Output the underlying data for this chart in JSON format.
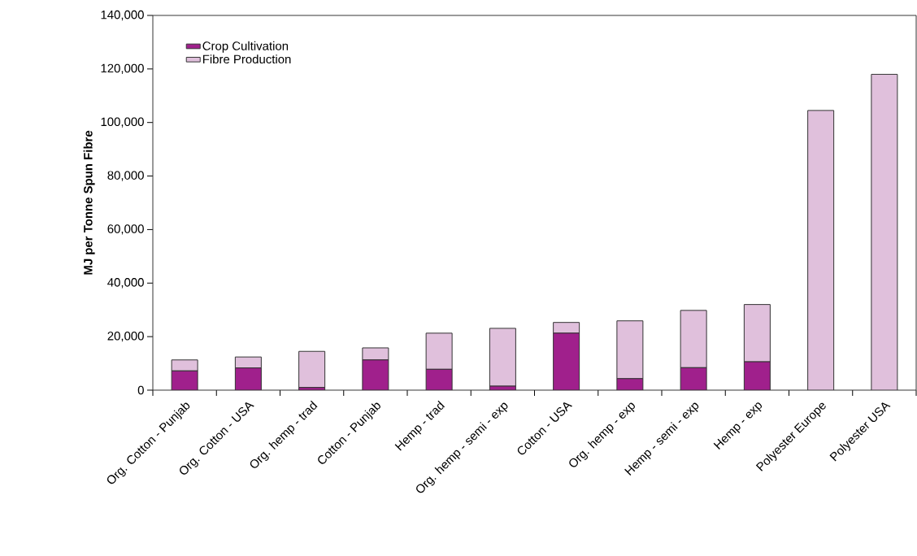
{
  "chart_data": {
    "type": "bar",
    "stacked": true,
    "ylabel": "MJ per Tonne Spun Fibre",
    "categories": [
      "Org. Cotton - Punjab",
      "Org. Cotton - USA",
      "Org. hemp - trad",
      "Cotton - Punjab",
      "Hemp - trad",
      "Org. hemp - semi - exp",
      "Cotton - USA",
      "Org. hemp - exp",
      "Hemp - semi - exp",
      "Hemp - exp",
      "Polyester Europe",
      "Polyester USA"
    ],
    "series": [
      {
        "name": "Crop Cultivation",
        "color": "#a0208c",
        "values": [
          7200,
          8300,
          1000,
          11300,
          7800,
          1500,
          21300,
          4300,
          8400,
          10600,
          0,
          0
        ]
      },
      {
        "name": "Fibre Production",
        "color": "#e0c0dc",
        "values": [
          4100,
          4100,
          13500,
          4500,
          13500,
          21600,
          4000,
          21600,
          21400,
          21400,
          104500,
          118000
        ]
      }
    ],
    "ylim": [
      0,
      140000
    ],
    "yticks": [
      {
        "value": 0,
        "label": "0"
      },
      {
        "value": 20000,
        "label": "20,000"
      },
      {
        "value": 40000,
        "label": "40,000"
      },
      {
        "value": 60000,
        "label": "60,000"
      },
      {
        "value": 80000,
        "label": "80,000"
      },
      {
        "value": 100000,
        "label": "100,000"
      },
      {
        "value": 120000,
        "label": "120,000"
      },
      {
        "value": 140000,
        "label": "140,000"
      }
    ],
    "grid": false,
    "legend": "top left"
  }
}
